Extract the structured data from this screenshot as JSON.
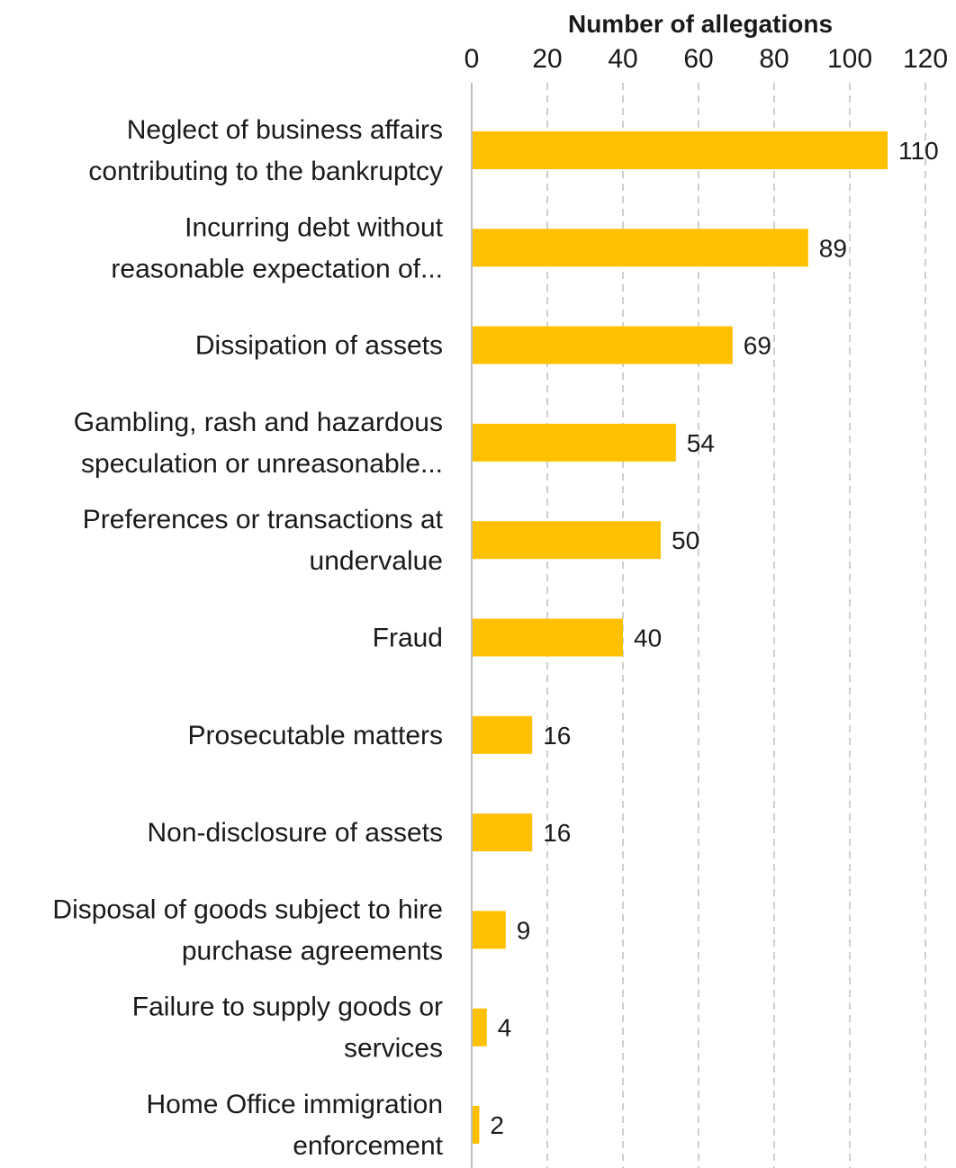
{
  "chart_data": {
    "type": "bar",
    "orientation": "horizontal",
    "x_axis_title": "Number of allegations",
    "x_axis_position": "top",
    "xlim": [
      0,
      120
    ],
    "x_ticks": [
      0,
      20,
      40,
      60,
      80,
      100,
      120
    ],
    "grid": "vertical dashed",
    "bar_color": "#FFC000",
    "categories": [
      [
        "Neglect of business affairs",
        "contributing to the bankruptcy"
      ],
      [
        "Incurring debt without",
        "reasonable expectation of..."
      ],
      [
        "Dissipation of assets"
      ],
      [
        "Gambling, rash and hazardous",
        "speculation or unreasonable..."
      ],
      [
        "Preferences or transactions at",
        "undervalue"
      ],
      [
        "Fraud"
      ],
      [
        "Prosecutable matters"
      ],
      [
        "Non-disclosure of assets"
      ],
      [
        "Disposal of goods subject to hire",
        "purchase agreements"
      ],
      [
        "Failure to supply goods or",
        "services"
      ],
      [
        "Home Office immigration",
        "enforcement"
      ]
    ],
    "values": [
      110,
      89,
      69,
      54,
      50,
      40,
      16,
      16,
      9,
      4,
      2
    ]
  }
}
